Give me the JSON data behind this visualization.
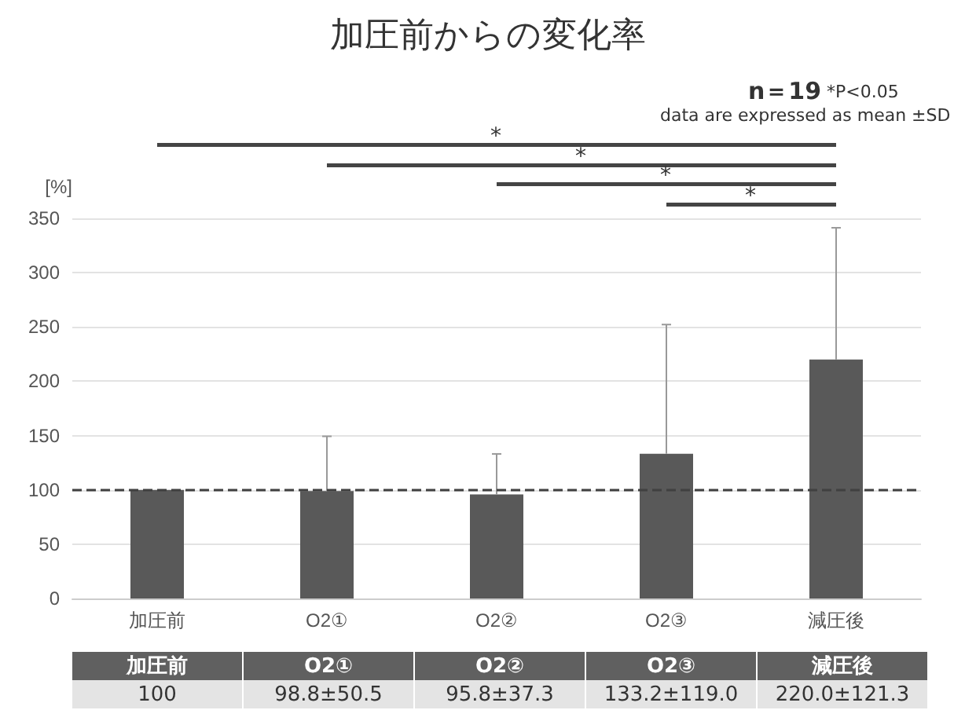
{
  "chart_data": {
    "type": "bar",
    "title": "加圧前からの変化率",
    "ylabel": "[%]",
    "categories": [
      "加圧前",
      "O2①",
      "O2②",
      "O2③",
      "減圧後"
    ],
    "values": [
      100,
      98.8,
      95.8,
      133.2,
      220.0
    ],
    "color": "#595959",
    "errors": [
      null,
      [
        98.8,
        149.3
      ],
      [
        95.8,
        133.1
      ],
      [
        133.2,
        252.2
      ],
      [
        220.0,
        341.3
      ]
    ],
    "value_labels": [
      "100",
      "98.8±50.5",
      "95.8±37.3",
      "133.2±119.0",
      "220.0±121.3"
    ],
    "ylim": [
      0,
      350
    ],
    "yticks": [
      0,
      50,
      100,
      150,
      200,
      250,
      300,
      350
    ],
    "grid": "y",
    "ref_lines": [
      {
        "axis": "y",
        "value": 100,
        "color": "#404040",
        "line_style": "dashed"
      }
    ],
    "annotations": [
      "n＝19",
      "*P<0.05",
      "data are expressed as mean ±SD",
      "*",
      "*",
      "*",
      "*"
    ]
  }
}
